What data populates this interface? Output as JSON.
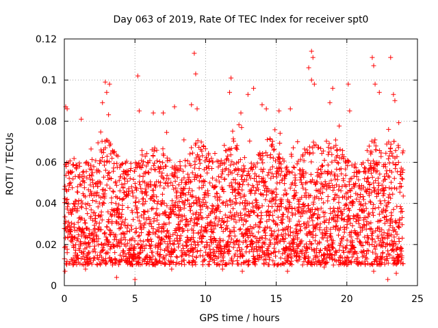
{
  "chart_data": {
    "type": "scatter",
    "title": "Day 063 of 2019, Rate Of TEC Index for receiver spt0",
    "xlabel": "GPS time / hours",
    "ylabel": "ROTI / TECUs",
    "xlim": [
      0,
      25
    ],
    "ylim": [
      0,
      0.12
    ],
    "xticks": [
      0,
      5,
      10,
      15,
      20,
      25
    ],
    "yticks": [
      0,
      0.02,
      0.04,
      0.06,
      0.08,
      0.1,
      0.12
    ],
    "xtick_labels": [
      "0",
      "5",
      "10",
      "15",
      "20",
      "25"
    ],
    "ytick_labels": [
      "0",
      "0.02",
      "0.04",
      "0.06",
      "0.08",
      "0.1",
      "0.12"
    ],
    "grid": true,
    "marker": "+",
    "series_color": "#ff0000",
    "series": [
      {
        "name": "ROTI",
        "time_range_hours": [
          0,
          24
        ],
        "bulk_band": [
          0.01,
          0.06
        ],
        "outliers": [
          [
            0.1,
            0.087
          ],
          [
            0.2,
            0.086
          ],
          [
            1.2,
            0.081
          ],
          [
            2.7,
            0.089
          ],
          [
            2.9,
            0.099
          ],
          [
            3.0,
            0.094
          ],
          [
            3.2,
            0.098
          ],
          [
            5.2,
            0.102
          ],
          [
            5.3,
            0.085
          ],
          [
            6.3,
            0.084
          ],
          [
            7.0,
            0.084
          ],
          [
            7.8,
            0.087
          ],
          [
            9.0,
            0.088
          ],
          [
            9.2,
            0.113
          ],
          [
            9.3,
            0.103
          ],
          [
            9.4,
            0.086
          ],
          [
            11.8,
            0.101
          ],
          [
            11.7,
            0.094
          ],
          [
            12.5,
            0.084
          ],
          [
            13.0,
            0.093
          ],
          [
            13.4,
            0.096
          ],
          [
            14.0,
            0.088
          ],
          [
            14.3,
            0.086
          ],
          [
            15.2,
            0.085
          ],
          [
            16.0,
            0.086
          ],
          [
            17.3,
            0.106
          ],
          [
            17.5,
            0.114
          ],
          [
            17.6,
            0.111
          ],
          [
            17.5,
            0.1
          ],
          [
            17.7,
            0.098
          ],
          [
            19.0,
            0.096
          ],
          [
            18.8,
            0.089
          ],
          [
            20.1,
            0.098
          ],
          [
            20.2,
            0.085
          ],
          [
            21.8,
            0.111
          ],
          [
            21.9,
            0.107
          ],
          [
            22.0,
            0.098
          ],
          [
            22.3,
            0.094
          ],
          [
            23.1,
            0.111
          ],
          [
            23.3,
            0.093
          ],
          [
            23.4,
            0.09
          ],
          [
            0.05,
            0.007
          ],
          [
            1.5,
            0.008
          ],
          [
            3.7,
            0.004
          ],
          [
            5.0,
            0.003
          ],
          [
            7.6,
            0.008
          ],
          [
            11.2,
            0.008
          ],
          [
            12.6,
            0.007
          ],
          [
            15.8,
            0.007
          ],
          [
            18.4,
            0.009
          ],
          [
            21.9,
            0.007
          ],
          [
            22.9,
            0.003
          ],
          [
            23.5,
            0.006
          ]
        ]
      }
    ]
  }
}
